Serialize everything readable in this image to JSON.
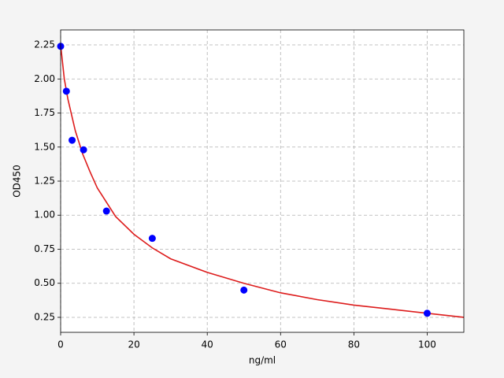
{
  "chart_data": {
    "type": "scatter",
    "xlabel": "ng/ml",
    "ylabel": "OD450",
    "xlim": [
      0,
      110
    ],
    "ylim": [
      0.14,
      2.36
    ],
    "xticks": [
      0,
      20,
      40,
      60,
      80,
      100
    ],
    "yticks": [
      0.25,
      {
        "value": 0.5,
        "label": "0.50"
      },
      0.75,
      {
        "value": 1,
        "label": "1.00"
      },
      1.25,
      {
        "value": 1.5,
        "label": "1.50"
      },
      1.75,
      {
        "value": 2,
        "label": "2.00"
      },
      2.25
    ],
    "grid": true,
    "series": [
      {
        "mode": "markers",
        "color": "#0000ff",
        "x": [
          0,
          1.5625,
          3.125,
          6.25,
          12.5,
          25,
          50,
          100
        ],
        "values": [
          2.24,
          1.91,
          1.55,
          1.48,
          1.03,
          0.83,
          0.45,
          0.28
        ]
      },
      {
        "mode": "line",
        "color": "#dd1c1c",
        "x": [
          0,
          1,
          2,
          4,
          6,
          8,
          10,
          15,
          20,
          25,
          30,
          40,
          50,
          60,
          70,
          80,
          90,
          100,
          110
        ],
        "values": [
          2.25,
          2.0,
          1.85,
          1.62,
          1.45,
          1.32,
          1.2,
          0.99,
          0.86,
          0.76,
          0.68,
          0.58,
          0.5,
          0.43,
          0.38,
          0.34,
          0.31,
          0.28,
          0.25
        ]
      }
    ]
  }
}
